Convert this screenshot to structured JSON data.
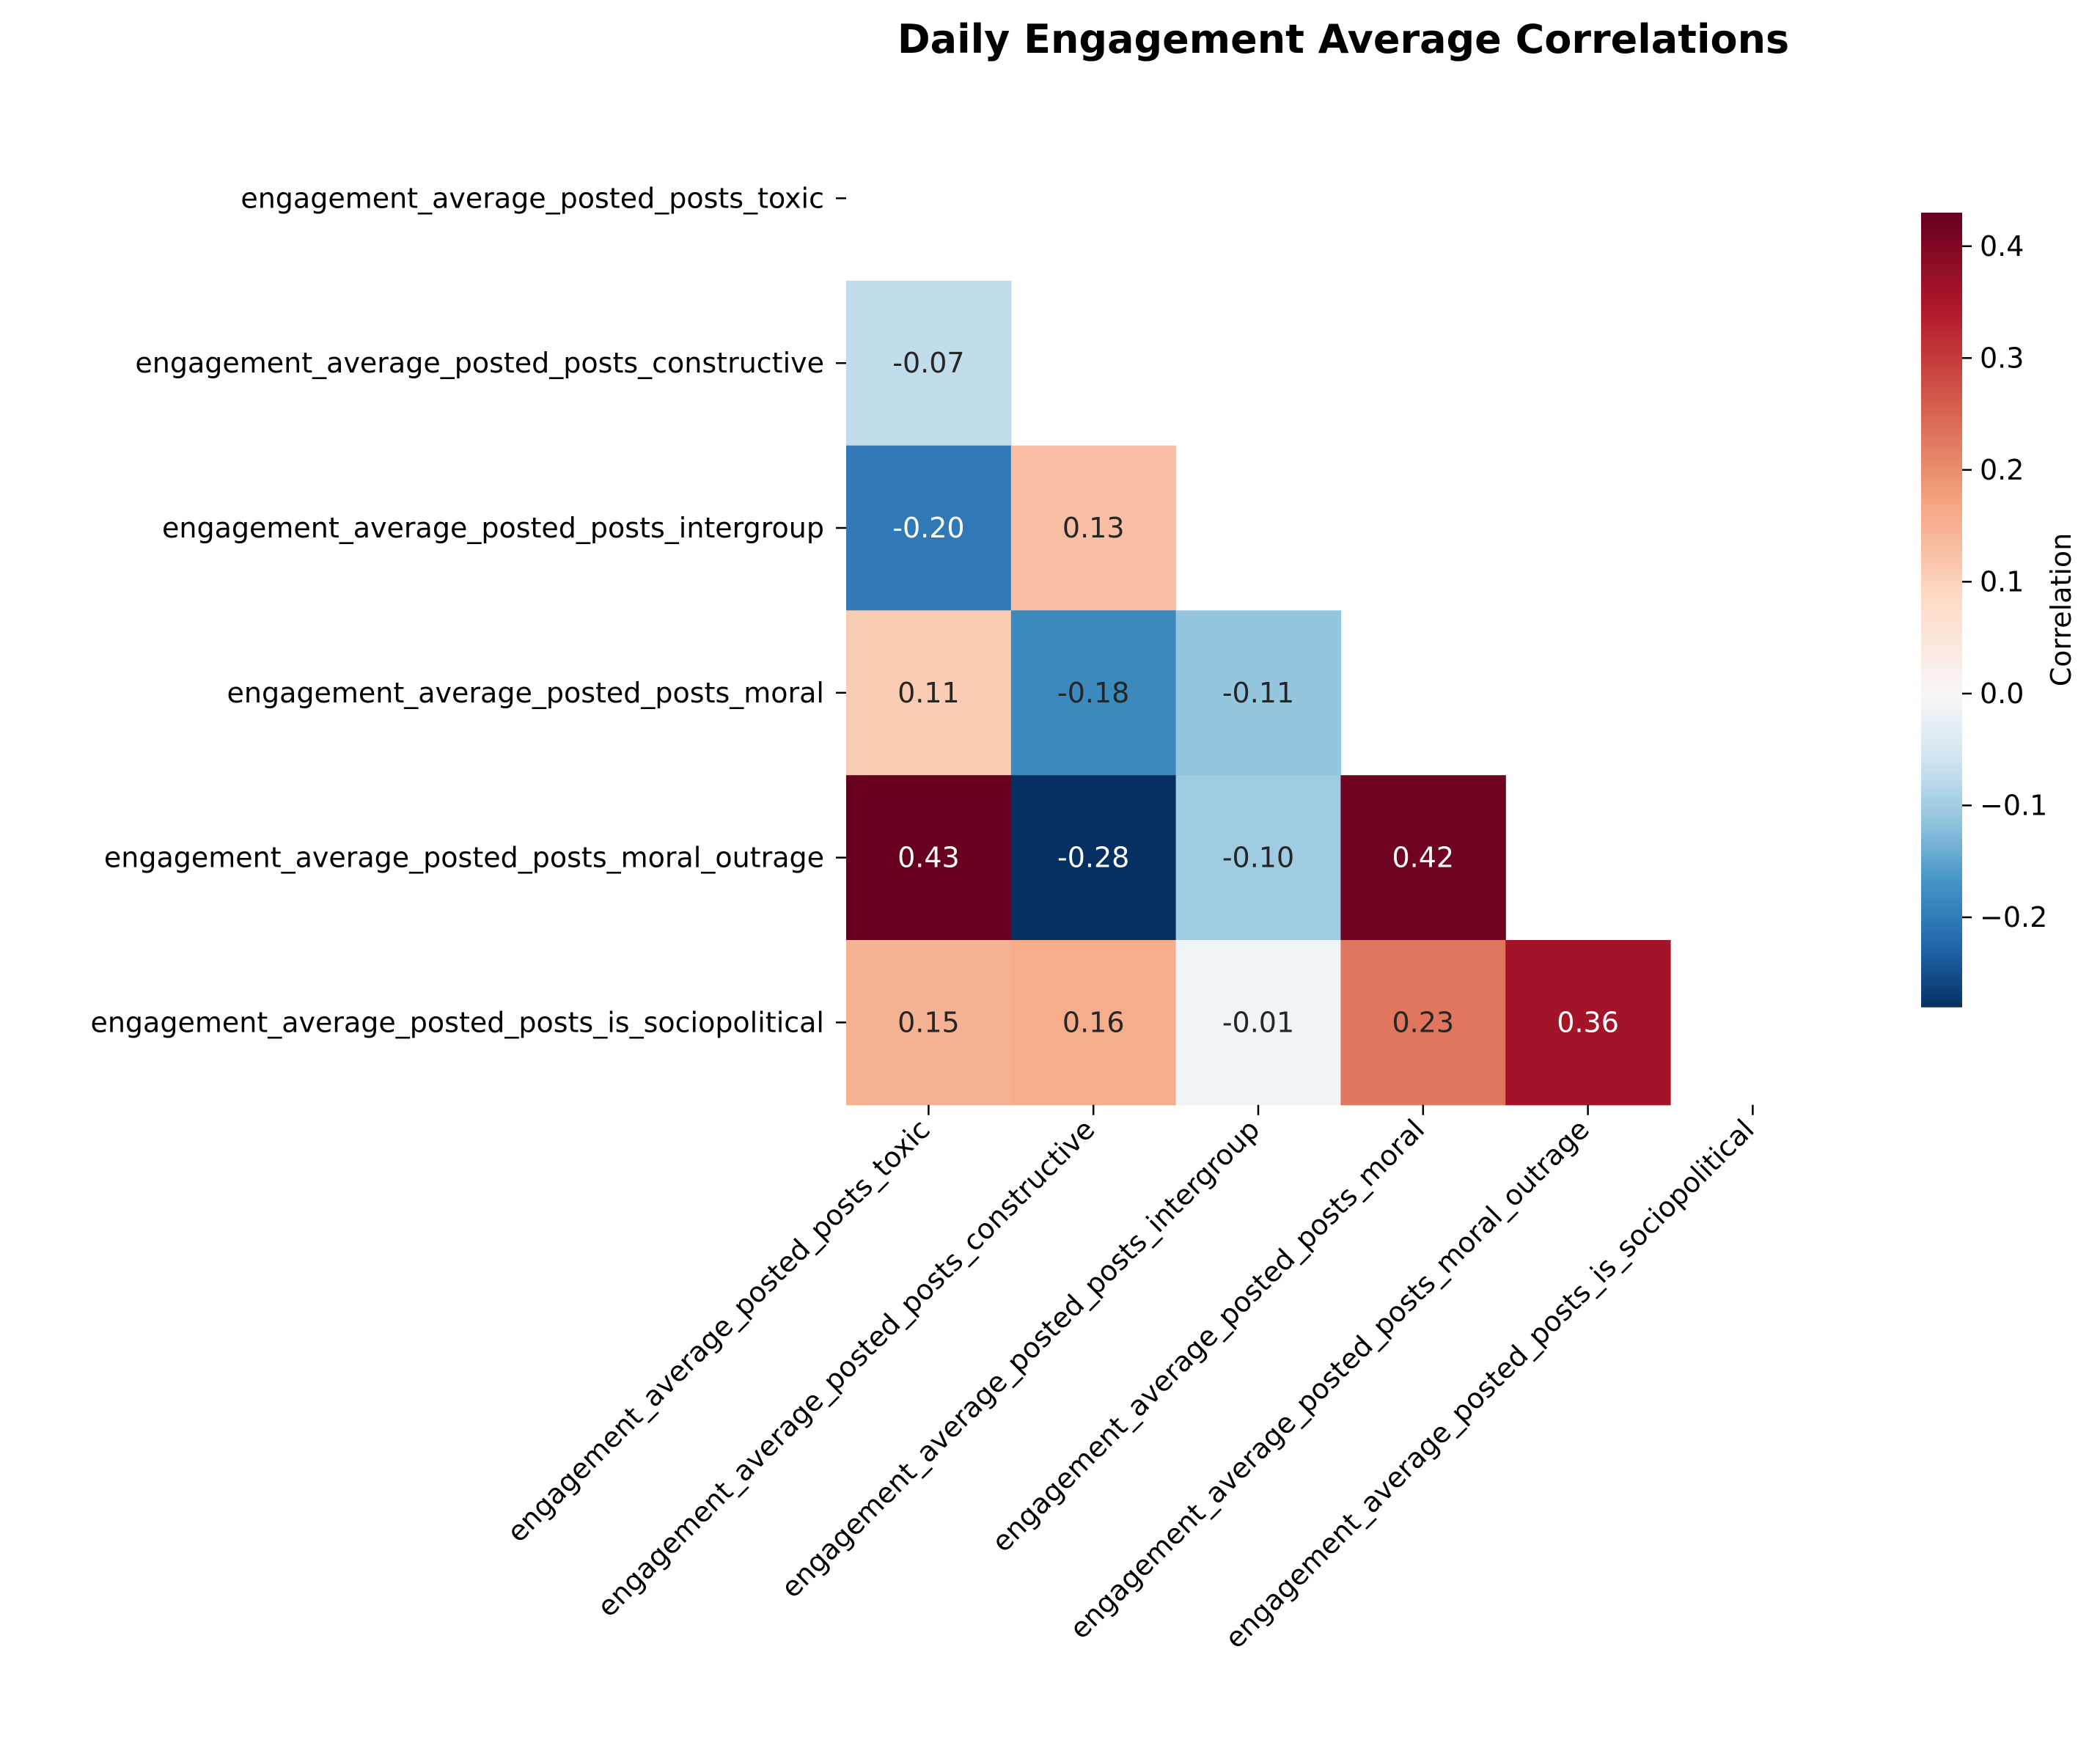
{
  "chart_data": {
    "type": "heatmap",
    "title": "Daily Engagement Average Correlations",
    "variables": [
      "engagement_average_posted_posts_toxic",
      "engagement_average_posted_posts_constructive",
      "engagement_average_posted_posts_intergroup",
      "engagement_average_posted_posts_moral",
      "engagement_average_posted_posts_moral_outrage",
      "engagement_average_posted_posts_is_sociopolitical"
    ],
    "mask": "upper-triangle-including-diagonal",
    "matrix": [
      [
        null,
        null,
        null,
        null,
        null,
        null
      ],
      [
        -0.07,
        null,
        null,
        null,
        null,
        null
      ],
      [
        -0.2,
        0.13,
        null,
        null,
        null,
        null
      ],
      [
        0.11,
        -0.18,
        -0.11,
        null,
        null,
        null
      ],
      [
        0.43,
        -0.28,
        -0.1,
        0.42,
        null,
        null
      ],
      [
        0.15,
        0.16,
        -0.01,
        0.23,
        0.36,
        null
      ]
    ],
    "colormap": "RdBu_r",
    "colorbar": {
      "label": "Correlation",
      "vmin": -0.28,
      "vmax": 0.43,
      "ticks": [
        "-0.2",
        "-0.1",
        "0.0",
        "0.1",
        "0.2",
        "0.3",
        "0.4"
      ],
      "tick_values": [
        -0.2,
        -0.1,
        0.0,
        0.1,
        0.2,
        0.3,
        0.4
      ]
    },
    "value_format": "2-decimals"
  }
}
